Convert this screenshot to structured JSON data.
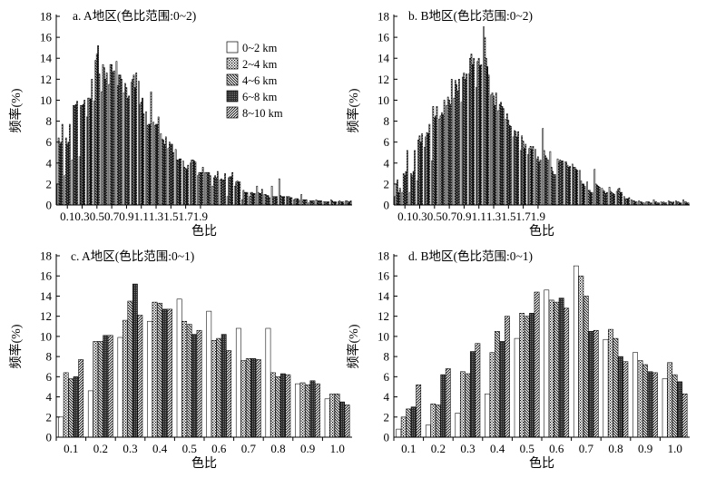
{
  "chart_data": [
    {
      "type": "bar",
      "title": "a. A地区(色比范围:0~2)",
      "xlabel": "色比",
      "ylabel": "频率(%)",
      "ylim": [
        0,
        18
      ],
      "yticks": [
        0,
        2,
        4,
        6,
        8,
        10,
        12,
        14,
        16,
        18
      ],
      "xticks": [
        "0.1",
        "0.3",
        "0.5",
        "0.7",
        "0.9",
        "1.1",
        "1.3",
        "1.5",
        "1.7",
        "1.9"
      ],
      "categories": [
        "0.05",
        "0.1",
        "0.15",
        "0.2",
        "0.25",
        "0.3",
        "0.35",
        "0.4",
        "0.45",
        "0.5",
        "0.55",
        "0.6",
        "0.65",
        "0.7",
        "0.75",
        "0.8",
        "0.85",
        "0.9",
        "0.95",
        "1.0",
        "1.05",
        "1.1",
        "1.15",
        "1.2",
        "1.25",
        "1.3",
        "1.35",
        "1.4",
        "1.45",
        "1.5",
        "1.55",
        "1.6",
        "1.65",
        "1.7",
        "1.75",
        "1.8",
        "1.85",
        "1.9",
        "1.95",
        "2.0"
      ],
      "legend": {
        "placement": "top-right",
        "entries": [
          "0~2 km",
          "2~4 km",
          "4~6 km",
          "6~8 km",
          "8~10 km"
        ]
      },
      "series": [
        {
          "name": "0~2 km",
          "values": [
            2,
            2.8,
            4.3,
            4.6,
            8.4,
            9.9,
            10.8,
            11.5,
            13.7,
            10.7,
            11.7,
            11.8,
            8.9,
            7.9,
            6.8,
            5.4,
            5.3,
            4.2,
            4.0,
            2.8,
            3.1,
            1.8,
            2.4,
            0.8,
            1.8,
            0.5,
            0.8,
            1.8,
            1.0,
            1.8,
            2.5,
            0.8,
            0.5,
            1.0,
            0.2,
            0.5,
            0.3,
            0.5,
            0.3,
            0.4
          ]
        },
        {
          "name": "2~4 km",
          "values": [
            6.4,
            6.4,
            9.5,
            9.5,
            10.2,
            13.8,
            13.4,
            13.4,
            11.4,
            11.6,
            12.0,
            9.6,
            7.6,
            7.6,
            6.3,
            6.0,
            4.3,
            3.6,
            4.3,
            3.1,
            3.1,
            2.6,
            2.5,
            2.6,
            2.2,
            1.4,
            1.2,
            1.2,
            1.0,
            0.8,
            0.9,
            0.8,
            0.6,
            0.5,
            0.4,
            0.4,
            0.3,
            0.4,
            0.4,
            0.4
          ]
        },
        {
          "name": "4~6 km",
          "values": [
            5.8,
            5.8,
            9.5,
            9.5,
            10.2,
            14.4,
            13.1,
            13.4,
            12.4,
            11.2,
            12.4,
            9.8,
            7.7,
            7.7,
            6.2,
            5.8,
            4.3,
            3.5,
            4.3,
            3.1,
            3.1,
            2.8,
            2.4,
            2.7,
            2.3,
            1.2,
            1.2,
            1.1,
            0.9,
            0.8,
            0.8,
            0.8,
            0.6,
            0.5,
            0.4,
            0.4,
            0.3,
            0.3,
            0.3,
            0.3
          ]
        },
        {
          "name": "6~8 km",
          "values": [
            6.0,
            6.0,
            9.6,
            9.6,
            10.1,
            15.2,
            12.0,
            12.7,
            12.4,
            10.2,
            11.2,
            10.2,
            7.7,
            7.7,
            5.8,
            5.8,
            4.4,
            3.4,
            4.2,
            3.1,
            3.1,
            2.6,
            2.4,
            2.7,
            2.2,
            1.2,
            1.1,
            1.1,
            0.9,
            0.8,
            0.8,
            0.7,
            0.6,
            0.5,
            0.4,
            0.4,
            0.3,
            0.3,
            0.3,
            0.3
          ]
        },
        {
          "name": "8~10 km",
          "values": [
            7.7,
            7.7,
            9.9,
            10.0,
            12.0,
            12.5,
            12.6,
            12.8,
            12.0,
            10.4,
            12.6,
            8.7,
            10.8,
            8.4,
            6.5,
            5.0,
            4.4,
            3.8,
            4.1,
            3.6,
            2.8,
            3.2,
            3.0,
            3.1,
            2.2,
            1.2,
            1.1,
            1.5,
            0.7,
            0.8,
            0.8,
            0.7,
            0.5,
            0.5,
            0.4,
            0.4,
            0.3,
            0.3,
            0.3,
            0.4
          ]
        }
      ]
    },
    {
      "type": "bar",
      "title": "b. B地区(色比范围:0~2)",
      "xlabel": "色比",
      "ylabel": "频率(%)",
      "ylim": [
        0,
        18
      ],
      "yticks": [
        0,
        2,
        4,
        6,
        8,
        10,
        12,
        14,
        16,
        18
      ],
      "xticks": [
        "0.1",
        "0.3",
        "0.5",
        "0.7",
        "0.9",
        "1.1",
        "1.3",
        "1.5",
        "1.7",
        "1.9"
      ],
      "categories": [
        "0.05",
        "0.1",
        "0.15",
        "0.2",
        "0.25",
        "0.3",
        "0.35",
        "0.4",
        "0.45",
        "0.5",
        "0.55",
        "0.6",
        "0.65",
        "0.7",
        "0.75",
        "0.8",
        "0.85",
        "0.9",
        "0.95",
        "1.0",
        "1.05",
        "1.1",
        "1.15",
        "1.2",
        "1.25",
        "1.3",
        "1.35",
        "1.4",
        "1.45",
        "1.5",
        "1.55",
        "1.6",
        "1.65",
        "1.7",
        "1.75",
        "1.8",
        "1.85",
        "1.9",
        "1.95",
        "2.0"
      ],
      "series": [
        {
          "name": "0~2 km",
          "values": [
            0.8,
            1.2,
            1.2,
            2.3,
            5.5,
            4.2,
            8.2,
            9.5,
            10.2,
            9.8,
            12.5,
            11.2,
            17.0,
            10.5,
            9.0,
            8.2,
            6.5,
            5.2,
            4.8,
            5.3,
            7.3,
            5.1,
            4.4,
            4.1,
            3.9,
            3.3,
            2.2,
            3.4,
            1.6,
            1.7,
            1.3,
            0.8,
            0.5,
            0.4,
            0.3,
            0.5,
            0.3,
            0.4,
            0.4,
            0.5
          ]
        },
        {
          "name": "2~4 km",
          "values": [
            2,
            3,
            3,
            6.2,
            6.5,
            9.4,
            8.5,
            10.3,
            11.9,
            12.2,
            14.0,
            13.7,
            16.0,
            10.7,
            9.6,
            8.7,
            7.1,
            6.6,
            5.4,
            4.4,
            5.2,
            3.6,
            4.1,
            4.1,
            3.6,
            2.3,
            1.4,
            2.0,
            1.4,
            1.3,
            1.5,
            0.6,
            0.4,
            0.3,
            0.3,
            0.3,
            0.2,
            0.3,
            0.3,
            0.3
          ]
        },
        {
          "name": "4~6 km",
          "values": [
            2.4,
            2.8,
            2.8,
            6.6,
            6.9,
            8.3,
            8.8,
            10.0,
            11.5,
            12.6,
            14.4,
            14.0,
            14.0,
            10.4,
            9.8,
            8.1,
            7.0,
            6.1,
            5.6,
            4.6,
            4.7,
            3.2,
            4.3,
            3.8,
            3.6,
            2.0,
            1.4,
            1.9,
            1.3,
            1.2,
            1.6,
            0.6,
            0.4,
            0.3,
            0.3,
            0.3,
            0.3,
            0.3,
            0.3,
            0.3
          ]
        },
        {
          "name": "6~8 km",
          "values": [
            1.2,
            3.2,
            3.2,
            6.0,
            6.8,
            8.5,
            8.6,
            9.6,
            10.9,
            12.0,
            13.4,
            13.3,
            13.2,
            9.5,
            9.4,
            7.6,
            6.5,
            5.4,
            5.3,
            4.1,
            4.5,
            2.9,
            4.2,
            3.6,
            3.4,
            2.0,
            1.2,
            1.8,
            1.1,
            1.1,
            1.2,
            0.6,
            0.3,
            0.2,
            0.2,
            0.2,
            0.2,
            0.2,
            0.2,
            0.2
          ]
        },
        {
          "name": "8~10 km",
          "values": [
            1.6,
            5.2,
            5.2,
            6.8,
            7.7,
            9.4,
            10.0,
            12.0,
            12.0,
            12.5,
            14.0,
            13.4,
            12.4,
            10.7,
            9.2,
            7.5,
            7.0,
            5.8,
            5.6,
            4.3,
            4.3,
            2.9,
            4.2,
            3.7,
            3.3,
            1.8,
            1.2,
            1.7,
            1.2,
            1.0,
            1.2,
            0.7,
            0.3,
            0.2,
            0.2,
            0.2,
            0.2,
            0.3,
            0.2,
            0.2
          ]
        }
      ]
    },
    {
      "type": "bar",
      "title": "c. A地区(色比范围:0~1)",
      "xlabel": "色比",
      "ylabel": "频率(%)",
      "ylim": [
        0,
        18
      ],
      "yticks": [
        0,
        2,
        4,
        6,
        8,
        10,
        12,
        14,
        16,
        18
      ],
      "categories": [
        "0.1",
        "0.2",
        "0.3",
        "0.4",
        "0.5",
        "0.6",
        "0.7",
        "0.8",
        "0.9",
        "1.0"
      ],
      "series": [
        {
          "name": "0~2 km",
          "values": [
            2.0,
            4.6,
            9.9,
            11.5,
            13.7,
            12.5,
            10.8,
            10.8,
            5.3,
            3.8
          ]
        },
        {
          "name": "2~4 km",
          "values": [
            6.4,
            9.5,
            11.6,
            13.4,
            11.5,
            9.6,
            7.6,
            6.4,
            5.4,
            4.3
          ]
        },
        {
          "name": "4~6 km",
          "values": [
            5.8,
            9.5,
            13.5,
            13.3,
            11.2,
            9.8,
            7.8,
            6.0,
            5.2,
            4.3
          ]
        },
        {
          "name": "6~8 km",
          "values": [
            6.0,
            10.1,
            15.2,
            12.7,
            10.2,
            10.2,
            7.8,
            6.3,
            5.6,
            3.5
          ]
        },
        {
          "name": "8~10 km",
          "values": [
            7.7,
            10.1,
            12.1,
            12.7,
            10.6,
            8.6,
            7.7,
            6.2,
            5.3,
            3.2
          ]
        }
      ]
    },
    {
      "type": "bar",
      "title": "d. B地区(色比范围:0~1)",
      "xlabel": "色比",
      "ylabel": "频率(%)",
      "ylim": [
        0,
        18
      ],
      "yticks": [
        0,
        2,
        4,
        6,
        8,
        10,
        12,
        14,
        16,
        18
      ],
      "categories": [
        "0.1",
        "0.2",
        "0.3",
        "0.4",
        "0.5",
        "0.6",
        "0.7",
        "0.8",
        "0.9",
        "1.0"
      ],
      "series": [
        {
          "name": "0~2 km",
          "values": [
            0.8,
            1.2,
            2.4,
            4.3,
            9.8,
            14.6,
            17.0,
            9.7,
            8.4,
            5.8
          ]
        },
        {
          "name": "2~4 km",
          "values": [
            2.0,
            3.3,
            6.5,
            8.4,
            12.3,
            13.6,
            16.0,
            10.7,
            7.6,
            7.4
          ]
        },
        {
          "name": "4~6 km",
          "values": [
            2.8,
            3.2,
            6.3,
            10.5,
            12.0,
            13.4,
            14.0,
            9.8,
            7.2,
            6.2
          ]
        },
        {
          "name": "6~8 km",
          "values": [
            3.0,
            6.2,
            8.5,
            9.5,
            12.3,
            13.8,
            10.5,
            8.0,
            6.5,
            5.5
          ]
        },
        {
          "name": "8~10 km",
          "values": [
            5.2,
            6.8,
            9.3,
            12.0,
            14.4,
            12.8,
            10.6,
            7.5,
            6.4,
            4.3
          ]
        }
      ]
    }
  ]
}
